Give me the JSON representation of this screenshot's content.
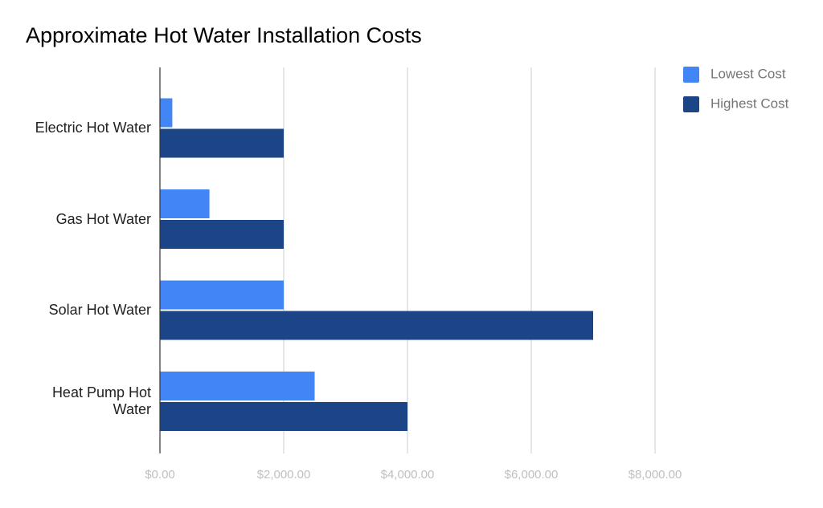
{
  "chart_data": {
    "type": "hbar",
    "title": "Approximate Hot Water Installation Costs",
    "categories": [
      "Electric Hot Water",
      "Gas Hot Water",
      "Solar Hot Water",
      "Heat Pump Hot Water"
    ],
    "series": [
      {
        "name": "Lowest Cost",
        "color": "#4285f4",
        "values": [
          200,
          800,
          2000,
          2500
        ]
      },
      {
        "name": "Highest Cost",
        "color": "#1c4587",
        "values": [
          2000,
          2000,
          7000,
          4000
        ]
      }
    ],
    "xlim": [
      0,
      8000
    ],
    "xticks": [
      {
        "value": 0,
        "label": "$0.00"
      },
      {
        "value": 2000,
        "label": "$2,000.00"
      },
      {
        "value": 4000,
        "label": "$4,000.00"
      },
      {
        "value": 6000,
        "label": "$6,000.00"
      },
      {
        "value": 8000,
        "label": "$8,000.00"
      }
    ],
    "grid": true,
    "legend": "right"
  }
}
